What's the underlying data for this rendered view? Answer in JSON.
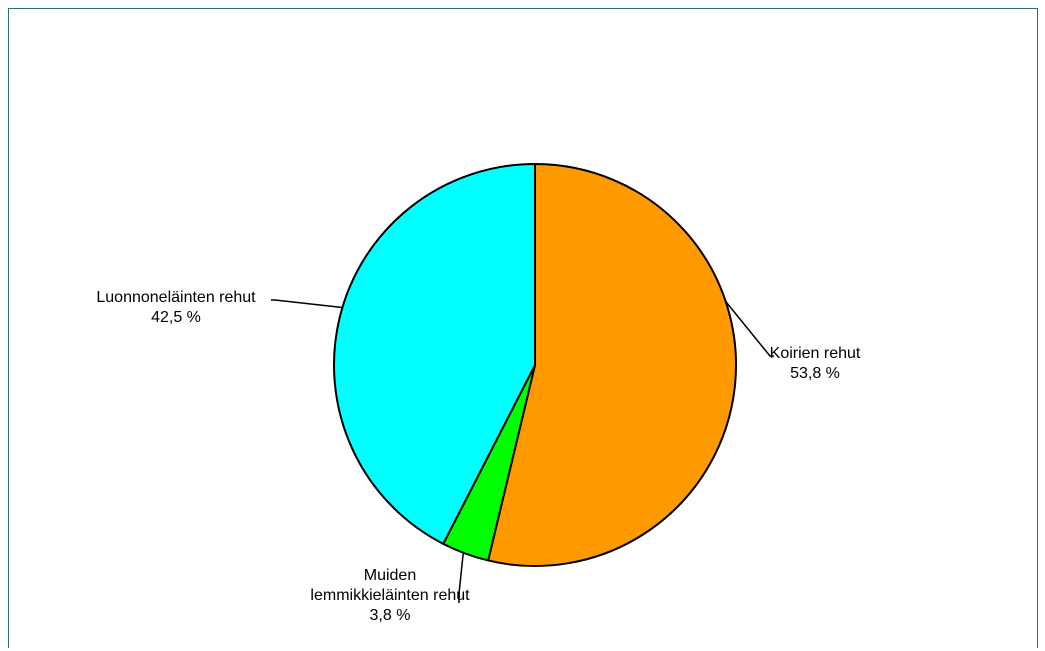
{
  "chart_data": {
    "type": "pie",
    "slices": [
      {
        "label_lines": [
          "Koirien rehut"
        ],
        "value": 53.8,
        "value_text": "53,8 %",
        "color": "#ff9900"
      },
      {
        "label_lines": [
          "Muiden",
          "lemmikkieläinten rehut"
        ],
        "value": 3.8,
        "value_text": "3,8 %",
        "color": "#00ff00"
      },
      {
        "label_lines": [
          "Luonnoneläinten rehut"
        ],
        "value": 42.5,
        "value_text": "42,5 %",
        "color": "#00ffff"
      }
    ],
    "start_angle_deg": 0,
    "direction": "clockwise"
  }
}
